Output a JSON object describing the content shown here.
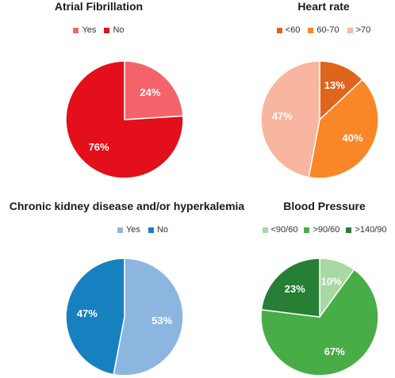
{
  "chart_data": [
    {
      "type": "pie",
      "title": "Atrial Fibrillation",
      "categories": [
        "Yes",
        "No"
      ],
      "values": [
        24,
        76
      ],
      "labels": [
        "24%",
        "76%"
      ],
      "colors": [
        "#f4636a",
        "#e30f1a"
      ],
      "legend_position": "top"
    },
    {
      "type": "pie",
      "title": "Heart rate",
      "categories": [
        "<60",
        "60-70",
        ">70"
      ],
      "values": [
        13,
        40,
        47
      ],
      "labels": [
        "13%",
        "40%",
        "47%"
      ],
      "colors": [
        "#e0651c",
        "#f98728",
        "#f8b59f"
      ],
      "legend_position": "top"
    },
    {
      "type": "pie",
      "title": "Chronic kidney disease and/or hyperkalemia",
      "categories": [
        "Yes",
        "No"
      ],
      "values": [
        53,
        47
      ],
      "labels": [
        "53%",
        "47%"
      ],
      "colors": [
        "#8cb6e0",
        "#1781c0"
      ],
      "legend_position": "top"
    },
    {
      "type": "pie",
      "title": "Blood Pressure",
      "categories": [
        "<90/60",
        ">90/60",
        ">140/90"
      ],
      "values": [
        10,
        67,
        23
      ],
      "labels": [
        "10%",
        "67%",
        "23%"
      ],
      "colors": [
        "#a8d8a4",
        "#48ad46",
        "#267f34"
      ],
      "legend_position": "top"
    }
  ]
}
